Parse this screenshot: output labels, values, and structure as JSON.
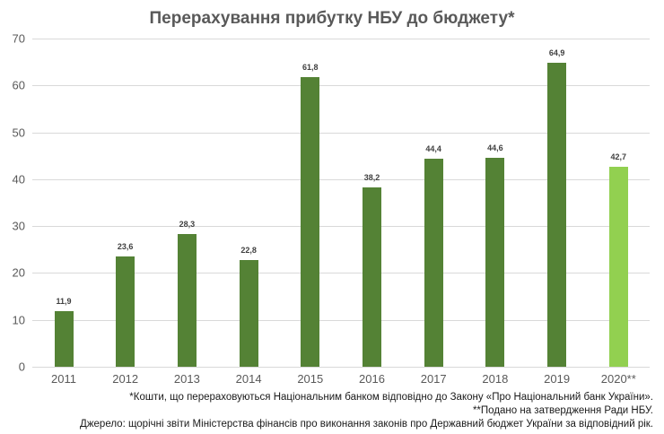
{
  "chart_data": {
    "type": "bar",
    "title": "Перерахування прибутку НБУ до бюджету*",
    "xlabel": "",
    "ylabel": "",
    "ylim": [
      0,
      70
    ],
    "yticks": [
      0,
      10,
      20,
      30,
      40,
      50,
      60,
      70
    ],
    "grid": true,
    "legend": null,
    "categories": [
      "2011",
      "2012",
      "2013",
      "2014",
      "2015",
      "2016",
      "2017",
      "2018",
      "2019",
      "2020**"
    ],
    "values": [
      11.9,
      23.6,
      28.3,
      22.8,
      61.8,
      38.2,
      44.4,
      44.6,
      64.9,
      42.7
    ],
    "value_labels": [
      "11,9",
      "23,6",
      "28,3",
      "22,8",
      "61,8",
      "38,2",
      "44,4",
      "44,6",
      "64,9",
      "42,7"
    ],
    "bar_colors": [
      "#548235",
      "#548235",
      "#548235",
      "#548235",
      "#548235",
      "#548235",
      "#548235",
      "#548235",
      "#548235",
      "#92d050"
    ],
    "annotations": [
      "*Кошти, що перераховуються Національним банком відповідно до Закону «Про Національний банк України».",
      "**Подано на затвердження Ради НБУ.",
      "Джерело: щорічні звіти Міністерства фінансів про виконання законів про Державний бюджет України за відповідний рік."
    ]
  },
  "colors": {
    "primary_bar": "#548235",
    "highlight_bar": "#92d050",
    "grid": "#d9d9d9",
    "axis_text": "#595959"
  }
}
